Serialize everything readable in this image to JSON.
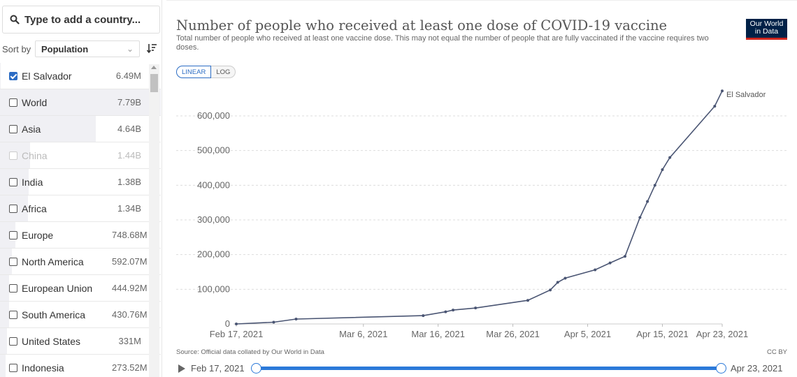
{
  "sidebar": {
    "search_placeholder": "Type to add a country...",
    "sort_label": "Sort by",
    "sort_value": "Population",
    "items": [
      {
        "name": "El Salvador",
        "value": "6.49M",
        "checked": true,
        "disabled": false
      },
      {
        "name": "World",
        "value": "7.79B",
        "checked": false,
        "disabled": false
      },
      {
        "name": "Asia",
        "value": "4.64B",
        "checked": false,
        "disabled": false
      },
      {
        "name": "China",
        "value": "1.44B",
        "checked": false,
        "disabled": true
      },
      {
        "name": "India",
        "value": "1.38B",
        "checked": false,
        "disabled": false
      },
      {
        "name": "Africa",
        "value": "1.34B",
        "checked": false,
        "disabled": false
      },
      {
        "name": "Europe",
        "value": "748.68M",
        "checked": false,
        "disabled": false
      },
      {
        "name": "North America",
        "value": "592.07M",
        "checked": false,
        "disabled": false
      },
      {
        "name": "European Union",
        "value": "444.92M",
        "checked": false,
        "disabled": false
      },
      {
        "name": "South America",
        "value": "430.76M",
        "checked": false,
        "disabled": false
      },
      {
        "name": "United States",
        "value": "331M",
        "checked": false,
        "disabled": false
      },
      {
        "name": "Indonesia",
        "value": "273.52M",
        "checked": false,
        "disabled": false
      }
    ]
  },
  "header": {
    "title": "Number of people who received at least one dose of COVID-19 vaccine",
    "subtitle": "Total number of people who received at least one vaccine dose. This may not equal the number of people that are fully vaccinated if the vaccine requires two doses.",
    "logo_line1": "Our World",
    "logo_line2": "in Data"
  },
  "scale_toggle": {
    "linear": "LINEAR",
    "log": "LOG",
    "active": "linear"
  },
  "footer": {
    "source": "Source: Official data collated by Our World in Data",
    "license": "CC BY"
  },
  "timeline": {
    "start": "Feb 17, 2021",
    "end": "Apr 23, 2021"
  },
  "colors": {
    "accent": "#2b79d9",
    "line": "#4a5573",
    "logo_bg": "#002147",
    "logo_stripe": "#ce261e"
  },
  "chart_data": {
    "type": "line",
    "title": "Number of people who received at least one dose of COVID-19 vaccine",
    "xlabel": "",
    "ylabel": "",
    "ylim": [
      0,
      700000
    ],
    "y_ticks": [
      0,
      100000,
      200000,
      300000,
      400000,
      500000,
      600000
    ],
    "y_tick_labels": [
      "0",
      "100,000",
      "200,000",
      "300,000",
      "400,000",
      "500,000",
      "600,000"
    ],
    "x_tick_labels": [
      "Feb 17, 2021",
      "Mar 6, 2021",
      "Mar 16, 2021",
      "Mar 26, 2021",
      "Apr 5, 2021",
      "Apr 15, 2021",
      "Apr 23, 2021"
    ],
    "x_tick_dates": [
      "2021-02-17",
      "2021-03-06",
      "2021-03-16",
      "2021-03-26",
      "2021-04-05",
      "2021-04-15",
      "2021-04-23"
    ],
    "x_range": [
      "2021-02-17",
      "2021-04-23"
    ],
    "grid": "horizontal dashed",
    "series": [
      {
        "name": "El Salvador",
        "points": [
          [
            "2021-02-17",
            0
          ],
          [
            "2021-02-22",
            5000
          ],
          [
            "2021-02-25",
            14000
          ],
          [
            "2021-03-14",
            24000
          ],
          [
            "2021-03-17",
            35000
          ],
          [
            "2021-03-18",
            40000
          ],
          [
            "2021-03-21",
            46000
          ],
          [
            "2021-03-28",
            68000
          ],
          [
            "2021-03-31",
            98000
          ],
          [
            "2021-04-01",
            120000
          ],
          [
            "2021-04-02",
            132000
          ],
          [
            "2021-04-06",
            156000
          ],
          [
            "2021-04-08",
            176000
          ],
          [
            "2021-04-10",
            195000
          ],
          [
            "2021-04-12",
            307000
          ],
          [
            "2021-04-13",
            353000
          ],
          [
            "2021-04-14",
            400000
          ],
          [
            "2021-04-15",
            445000
          ],
          [
            "2021-04-16",
            480000
          ],
          [
            "2021-04-22",
            628000
          ],
          [
            "2021-04-23",
            672000
          ]
        ]
      }
    ]
  }
}
